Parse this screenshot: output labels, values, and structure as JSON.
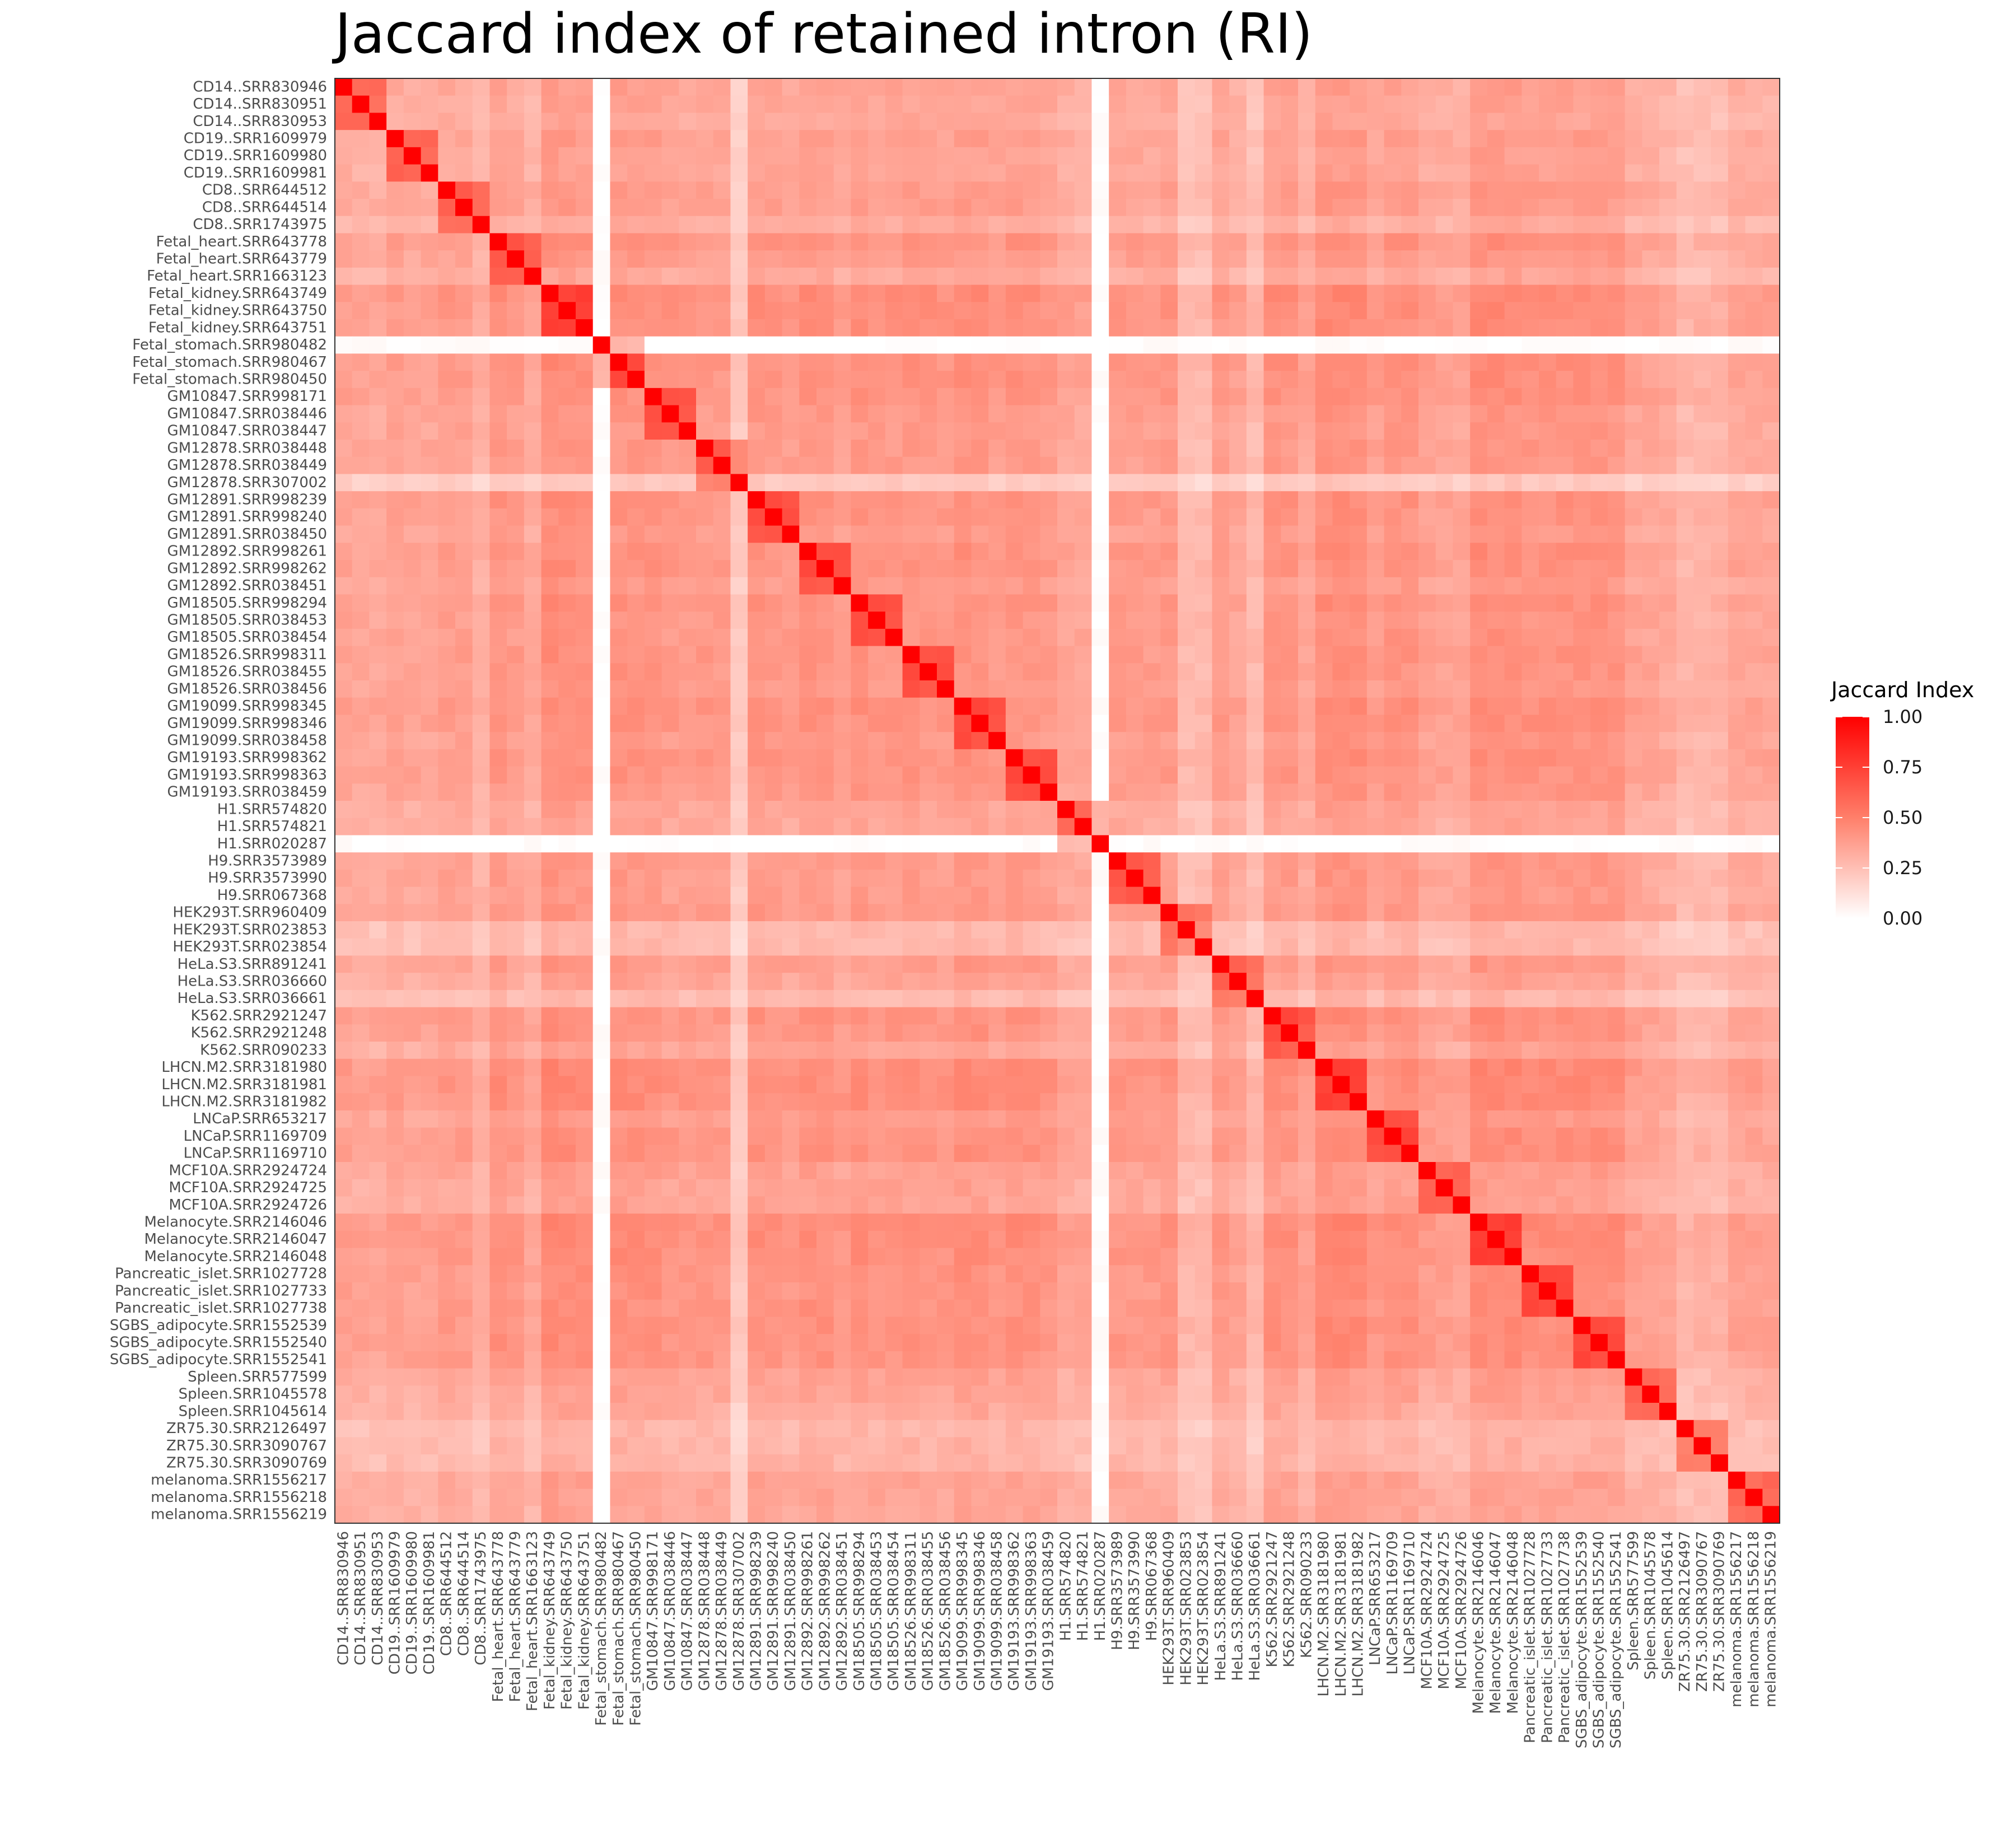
{
  "chart_data": {
    "type": "heatmap",
    "title": "Jaccard index of retained intron (RI)",
    "xlabel": "",
    "ylabel": "",
    "legend": {
      "title": "Jaccard Index",
      "position": "right",
      "range": [
        0,
        1
      ],
      "ticks": [
        "1.00",
        "0.75",
        "0.50",
        "0.25",
        "0.00"
      ],
      "colors": {
        "low": "#ffffff",
        "high": "#ff0000"
      }
    },
    "samples": [
      "CD14..SRR830946",
      "CD14..SRR830951",
      "CD14..SRR830953",
      "CD19..SRR1609979",
      "CD19..SRR1609980",
      "CD19..SRR1609981",
      "CD8..SRR644512",
      "CD8..SRR644514",
      "CD8..SRR1743975",
      "Fetal_heart.SRR643778",
      "Fetal_heart.SRR643779",
      "Fetal_heart.SRR1663123",
      "Fetal_kidney.SRR643749",
      "Fetal_kidney.SRR643750",
      "Fetal_kidney.SRR643751",
      "Fetal_stomach.SRR980482",
      "Fetal_stomach.SRR980467",
      "Fetal_stomach.SRR980450",
      "GM10847.SRR998171",
      "GM10847.SRR038446",
      "GM10847.SRR038447",
      "GM12878.SRR038448",
      "GM12878.SRR038449",
      "GM12878.SRR307002",
      "GM12891.SRR998239",
      "GM12891.SRR998240",
      "GM12891.SRR038450",
      "GM12892.SRR998261",
      "GM12892.SRR998262",
      "GM12892.SRR038451",
      "GM18505.SRR998294",
      "GM18505.SRR038453",
      "GM18505.SRR038454",
      "GM18526.SRR998311",
      "GM18526.SRR038455",
      "GM18526.SRR038456",
      "GM19099.SRR998345",
      "GM19099.SRR998346",
      "GM19099.SRR038458",
      "GM19193.SRR998362",
      "GM19193.SRR998363",
      "GM19193.SRR038459",
      "H1.SRR574820",
      "H1.SRR574821",
      "H1.SRR020287",
      "H9.SRR3573989",
      "H9.SRR3573990",
      "H9.SRR067368",
      "HEK293T.SRR960409",
      "HEK293T.SRR023853",
      "HEK293T.SRR023854",
      "HeLa.S3.SRR891241",
      "HeLa.S3.SRR036660",
      "HeLa.S3.SRR036661",
      "K562.SRR2921247",
      "K562.SRR2921248",
      "K562.SRR090233",
      "LHCN.M2.SRR3181980",
      "LHCN.M2.SRR3181981",
      "LHCN.M2.SRR3181982",
      "LNCaP.SRR653217",
      "LNCaP.SRR1169709",
      "LNCaP.SRR1169710",
      "MCF10A.SRR2924724",
      "MCF10A.SRR2924725",
      "MCF10A.SRR2924726",
      "Melanocyte.SRR2146046",
      "Melanocyte.SRR2146047",
      "Melanocyte.SRR2146048",
      "Pancreatic_islet.SRR1027728",
      "Pancreatic_islet.SRR1027733",
      "Pancreatic_islet.SRR1027738",
      "SGBS_adipocyte.SRR1552539",
      "SGBS_adipocyte.SRR1552540",
      "SGBS_adipocyte.SRR1552541",
      "Spleen.SRR577599",
      "Spleen.SRR1045578",
      "Spleen.SRR1045614",
      "ZR75.30.SRR2126497",
      "ZR75.30.SRR3090767",
      "ZR75.30.SRR3090769",
      "melanoma.SRR1556217",
      "melanoma.SRR1556218",
      "melanoma.SRR1556219"
    ],
    "sample_level": [
      0.52,
      0.48,
      0.46,
      0.55,
      0.5,
      0.5,
      0.58,
      0.56,
      0.4,
      0.68,
      0.6,
      0.45,
      0.78,
      0.75,
      0.72,
      0.0,
      0.72,
      0.7,
      0.7,
      0.62,
      0.6,
      0.62,
      0.6,
      0.18,
      0.7,
      0.66,
      0.6,
      0.7,
      0.68,
      0.58,
      0.7,
      0.65,
      0.65,
      0.68,
      0.66,
      0.62,
      0.72,
      0.7,
      0.62,
      0.7,
      0.68,
      0.62,
      0.5,
      0.48,
      0.0,
      0.6,
      0.6,
      0.58,
      0.62,
      0.3,
      0.3,
      0.6,
      0.5,
      0.3,
      0.7,
      0.68,
      0.5,
      0.78,
      0.78,
      0.76,
      0.6,
      0.7,
      0.7,
      0.55,
      0.52,
      0.5,
      0.78,
      0.76,
      0.75,
      0.7,
      0.7,
      0.7,
      0.72,
      0.72,
      0.7,
      0.52,
      0.5,
      0.45,
      0.32,
      0.35,
      0.35,
      0.5,
      0.5,
      0.48
    ],
    "group_bonus": 0.28,
    "diagonal_value": 1.0
  }
}
